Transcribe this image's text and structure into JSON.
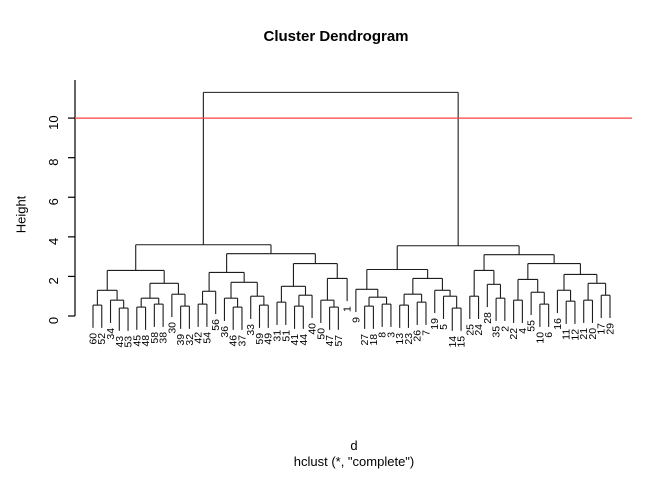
{
  "title": "Cluster Dendrogram",
  "ylabel": "Height",
  "xlabel_line1": "d",
  "xlabel_line2": "hclust (*, \"complete\")",
  "cutoff": {
    "height": 10,
    "color": "#ff4040"
  },
  "branch_color": "#1c1c1c",
  "chart_data": {
    "type": "dendrogram",
    "method": "complete",
    "title": "Cluster Dendrogram",
    "ylabel": "Height",
    "xlabel": "d",
    "sub": "hclust (*, \"complete\")",
    "ylim": [
      0,
      11.5
    ],
    "yticks": [
      0,
      2,
      4,
      6,
      8,
      10
    ],
    "hang": 1.15,
    "root_height": 11.3,
    "cutoff_line": 10,
    "leaf_order": [
      "60",
      "52",
      "34",
      "43",
      "53",
      "45",
      "48",
      "58",
      "38",
      "30",
      "39",
      "32",
      "42",
      "54",
      "56",
      "36",
      "46",
      "37",
      "33",
      "59",
      "49",
      "31",
      "51",
      "41",
      "44",
      "40",
      "50",
      "47",
      "57",
      "1",
      "9",
      "27",
      "18",
      "8",
      "3",
      "13",
      "23",
      "26",
      "7",
      "19",
      "5",
      "14",
      "15",
      "25",
      "24",
      "28",
      "35",
      "2",
      "22",
      "4",
      "55",
      "10",
      "6",
      "16",
      "11",
      "12",
      "21",
      "20",
      "17",
      "29"
    ],
    "tree": {
      "h": 11.3,
      "c": [
        {
          "h": 3.6,
          "c": [
            {
              "h": 2.3,
              "c": [
                {
                  "h": 1.3,
                  "c": [
                    {
                      "h": 0.55,
                      "c": [
                        {
                          "leaf": "60"
                        },
                        {
                          "leaf": "52"
                        }
                      ]
                    },
                    {
                      "h": 0.8,
                      "c": [
                        {
                          "leaf": "34"
                        },
                        {
                          "h": 0.4,
                          "c": [
                            {
                              "leaf": "43"
                            },
                            {
                              "leaf": "53"
                            }
                          ]
                        }
                      ]
                    }
                  ]
                },
                {
                  "h": 1.65,
                  "c": [
                    {
                      "h": 0.9,
                      "c": [
                        {
                          "h": 0.45,
                          "c": [
                            {
                              "leaf": "45"
                            },
                            {
                              "leaf": "48"
                            }
                          ]
                        },
                        {
                          "h": 0.6,
                          "c": [
                            {
                              "leaf": "58"
                            },
                            {
                              "leaf": "38"
                            }
                          ]
                        }
                      ]
                    },
                    {
                      "h": 1.1,
                      "c": [
                        {
                          "leaf": "30"
                        },
                        {
                          "h": 0.5,
                          "c": [
                            {
                              "leaf": "39"
                            },
                            {
                              "leaf": "32"
                            }
                          ]
                        }
                      ]
                    }
                  ]
                }
              ]
            },
            {
              "h": 3.15,
              "c": [
                {
                  "h": 2.2,
                  "c": [
                    {
                      "h": 1.25,
                      "c": [
                        {
                          "h": 0.6,
                          "c": [
                            {
                              "leaf": "42"
                            },
                            {
                              "leaf": "54"
                            }
                          ]
                        },
                        {
                          "leaf": "56"
                        }
                      ]
                    },
                    {
                      "h": 1.7,
                      "c": [
                        {
                          "h": 0.9,
                          "c": [
                            {
                              "leaf": "36"
                            },
                            {
                              "h": 0.45,
                              "c": [
                                {
                                  "leaf": "46"
                                },
                                {
                                  "leaf": "37"
                                }
                              ]
                            }
                          ]
                        },
                        {
                          "h": 1.0,
                          "c": [
                            {
                              "leaf": "33"
                            },
                            {
                              "h": 0.55,
                              "c": [
                                {
                                  "leaf": "59"
                                },
                                {
                                  "leaf": "49"
                                }
                              ]
                            }
                          ]
                        }
                      ]
                    }
                  ]
                },
                {
                  "h": 2.65,
                  "c": [
                    {
                      "h": 1.5,
                      "c": [
                        {
                          "h": 0.7,
                          "c": [
                            {
                              "leaf": "31"
                            },
                            {
                              "leaf": "51"
                            }
                          ]
                        },
                        {
                          "h": 1.05,
                          "c": [
                            {
                              "h": 0.5,
                              "c": [
                                {
                                  "leaf": "41"
                                },
                                {
                                  "leaf": "44"
                                }
                              ]
                            },
                            {
                              "leaf": "40"
                            }
                          ]
                        }
                      ]
                    },
                    {
                      "h": 1.9,
                      "c": [
                        {
                          "h": 0.8,
                          "c": [
                            {
                              "leaf": "50"
                            },
                            {
                              "h": 0.45,
                              "c": [
                                {
                                  "leaf": "47"
                                },
                                {
                                  "leaf": "57"
                                }
                              ]
                            }
                          ]
                        },
                        {
                          "leaf": "1"
                        }
                      ]
                    }
                  ]
                }
              ]
            }
          ]
        },
        {
          "h": 3.55,
          "c": [
            {
              "h": 2.35,
              "c": [
                {
                  "h": 1.35,
                  "c": [
                    {
                      "leaf": "9"
                    },
                    {
                      "h": 0.95,
                      "c": [
                        {
                          "h": 0.5,
                          "c": [
                            {
                              "leaf": "27"
                            },
                            {
                              "leaf": "18"
                            }
                          ]
                        },
                        {
                          "h": 0.6,
                          "c": [
                            {
                              "leaf": "8"
                            },
                            {
                              "leaf": "3"
                            }
                          ]
                        }
                      ]
                    }
                  ]
                },
                {
                  "h": 1.9,
                  "c": [
                    {
                      "h": 1.1,
                      "c": [
                        {
                          "h": 0.55,
                          "c": [
                            {
                              "leaf": "13"
                            },
                            {
                              "leaf": "23"
                            }
                          ]
                        },
                        {
                          "h": 0.7,
                          "c": [
                            {
                              "leaf": "26"
                            },
                            {
                              "leaf": "7"
                            }
                          ]
                        }
                      ]
                    },
                    {
                      "h": 1.3,
                      "c": [
                        {
                          "leaf": "19"
                        },
                        {
                          "h": 1.0,
                          "c": [
                            {
                              "leaf": "5"
                            },
                            {
                              "h": 0.4,
                              "c": [
                                {
                                  "leaf": "14"
                                },
                                {
                                  "leaf": "15"
                                }
                              ]
                            }
                          ]
                        }
                      ]
                    }
                  ]
                }
              ]
            },
            {
              "h": 3.1,
              "c": [
                {
                  "h": 2.3,
                  "c": [
                    {
                      "h": 1.0,
                      "c": [
                        {
                          "leaf": "25"
                        },
                        {
                          "leaf": "24"
                        }
                      ]
                    },
                    {
                      "h": 1.6,
                      "c": [
                        {
                          "leaf": "28"
                        },
                        {
                          "h": 0.9,
                          "c": [
                            {
                              "leaf": "35"
                            },
                            {
                              "leaf": "2"
                            }
                          ]
                        }
                      ]
                    }
                  ]
                },
                {
                  "h": 2.65,
                  "c": [
                    {
                      "h": 1.85,
                      "c": [
                        {
                          "h": 0.8,
                          "c": [
                            {
                              "leaf": "22"
                            },
                            {
                              "leaf": "4"
                            }
                          ]
                        },
                        {
                          "h": 1.2,
                          "c": [
                            {
                              "leaf": "55"
                            },
                            {
                              "h": 0.6,
                              "c": [
                                {
                                  "leaf": "10"
                                },
                                {
                                  "leaf": "6"
                                }
                              ]
                            }
                          ]
                        }
                      ]
                    },
                    {
                      "h": 2.1,
                      "c": [
                        {
                          "h": 1.3,
                          "c": [
                            {
                              "leaf": "16"
                            },
                            {
                              "h": 0.75,
                              "c": [
                                {
                                  "leaf": "11"
                                },
                                {
                                  "leaf": "12"
                                }
                              ]
                            }
                          ]
                        },
                        {
                          "h": 1.65,
                          "c": [
                            {
                              "h": 0.8,
                              "c": [
                                {
                                  "leaf": "21"
                                },
                                {
                                  "leaf": "20"
                                }
                              ]
                            },
                            {
                              "h": 1.05,
                              "c": [
                                {
                                  "leaf": "17"
                                },
                                {
                                  "leaf": "29"
                                }
                              ]
                            }
                          ]
                        }
                      ]
                    }
                  ]
                }
              ]
            }
          ]
        }
      ]
    }
  }
}
